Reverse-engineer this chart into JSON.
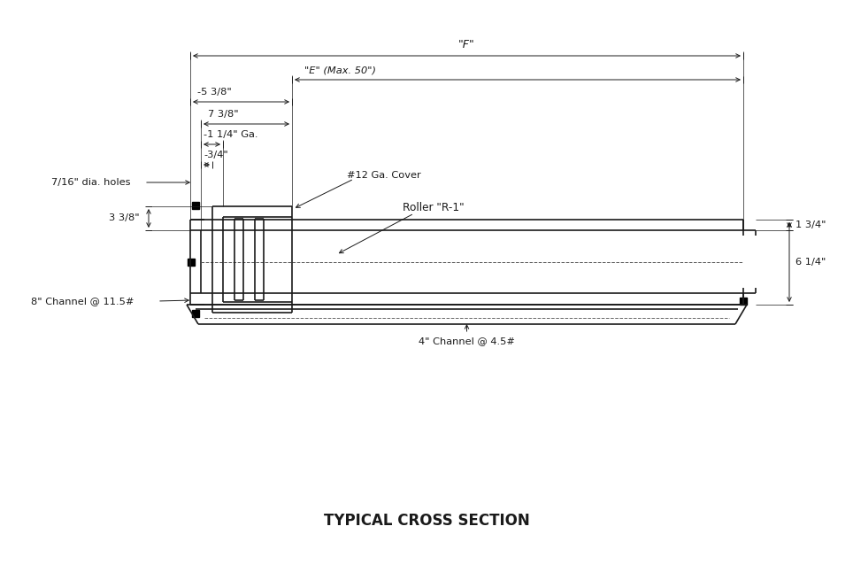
{
  "title": "TYPICAL CROSS SECTION",
  "background_color": "#ffffff",
  "line_color": "#1a1a1a",
  "annotations": {
    "F_label": "\"F\"",
    "E_label": "\"E\" (Max. 50\")",
    "dim_5_3_8": "-5 3/8\"",
    "dim_7_3_8": "7 3/8\"",
    "dim_1_1_4": "-1 1/4\" Ga.",
    "dim_3_4": "-3/4\"",
    "dia_holes": "7/16\" dia. holes",
    "dim_3_3_8": "3 3/8\"",
    "cover_label": "#12 Ga. Cover",
    "roller_label": "Roller \"R-1\"",
    "channel_8": "8\" Channel @ 11.5#",
    "channel_4": "4\" Channel @ 4.5#",
    "dim_1_3_4": "1 3/4\"",
    "dim_6_1_4": "6 1/4\""
  }
}
